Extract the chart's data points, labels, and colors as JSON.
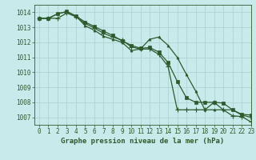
{
  "title": "Graphe pression niveau de la mer (hPa)",
  "bg_color": "#c8eaea",
  "grid_color": "#b0d4d4",
  "line_color": "#2d5a2d",
  "xlim": [
    -0.5,
    23
  ],
  "ylim": [
    1006.5,
    1014.5
  ],
  "yticks": [
    1007,
    1008,
    1009,
    1010,
    1011,
    1012,
    1013,
    1014
  ],
  "xticks": [
    0,
    1,
    2,
    3,
    4,
    5,
    6,
    7,
    8,
    9,
    10,
    11,
    12,
    13,
    14,
    15,
    16,
    17,
    18,
    19,
    20,
    21,
    22,
    23
  ],
  "series1": [
    1013.6,
    1013.6,
    1013.6,
    1013.95,
    1013.7,
    1013.25,
    1012.95,
    1012.6,
    1012.35,
    1012.15,
    1011.7,
    1011.55,
    1011.55,
    1011.2,
    1010.4,
    1007.5,
    1007.5,
    1007.5,
    1007.5,
    1008.0,
    1007.5,
    1007.1,
    1007.05,
    1006.7
  ],
  "series2": [
    1013.6,
    1013.6,
    1013.9,
    1014.05,
    1013.75,
    1013.35,
    1013.05,
    1012.75,
    1012.45,
    1012.1,
    1011.8,
    1011.6,
    1011.65,
    1011.35,
    1010.65,
    1009.4,
    1008.3,
    1008.0,
    1008.0,
    1008.0,
    1007.95,
    1007.5,
    1007.2,
    1007.15
  ],
  "series3": [
    1013.6,
    1013.6,
    1013.9,
    1014.05,
    1013.75,
    1013.1,
    1012.8,
    1012.4,
    1012.2,
    1012.0,
    1011.45,
    1011.55,
    1012.2,
    1012.35,
    1011.8,
    1011.0,
    1009.85,
    1008.75,
    1007.5,
    1007.5,
    1007.5,
    1007.5,
    1007.15,
    1007.0
  ],
  "title_fontsize": 6.5,
  "tick_fontsize": 5.5
}
